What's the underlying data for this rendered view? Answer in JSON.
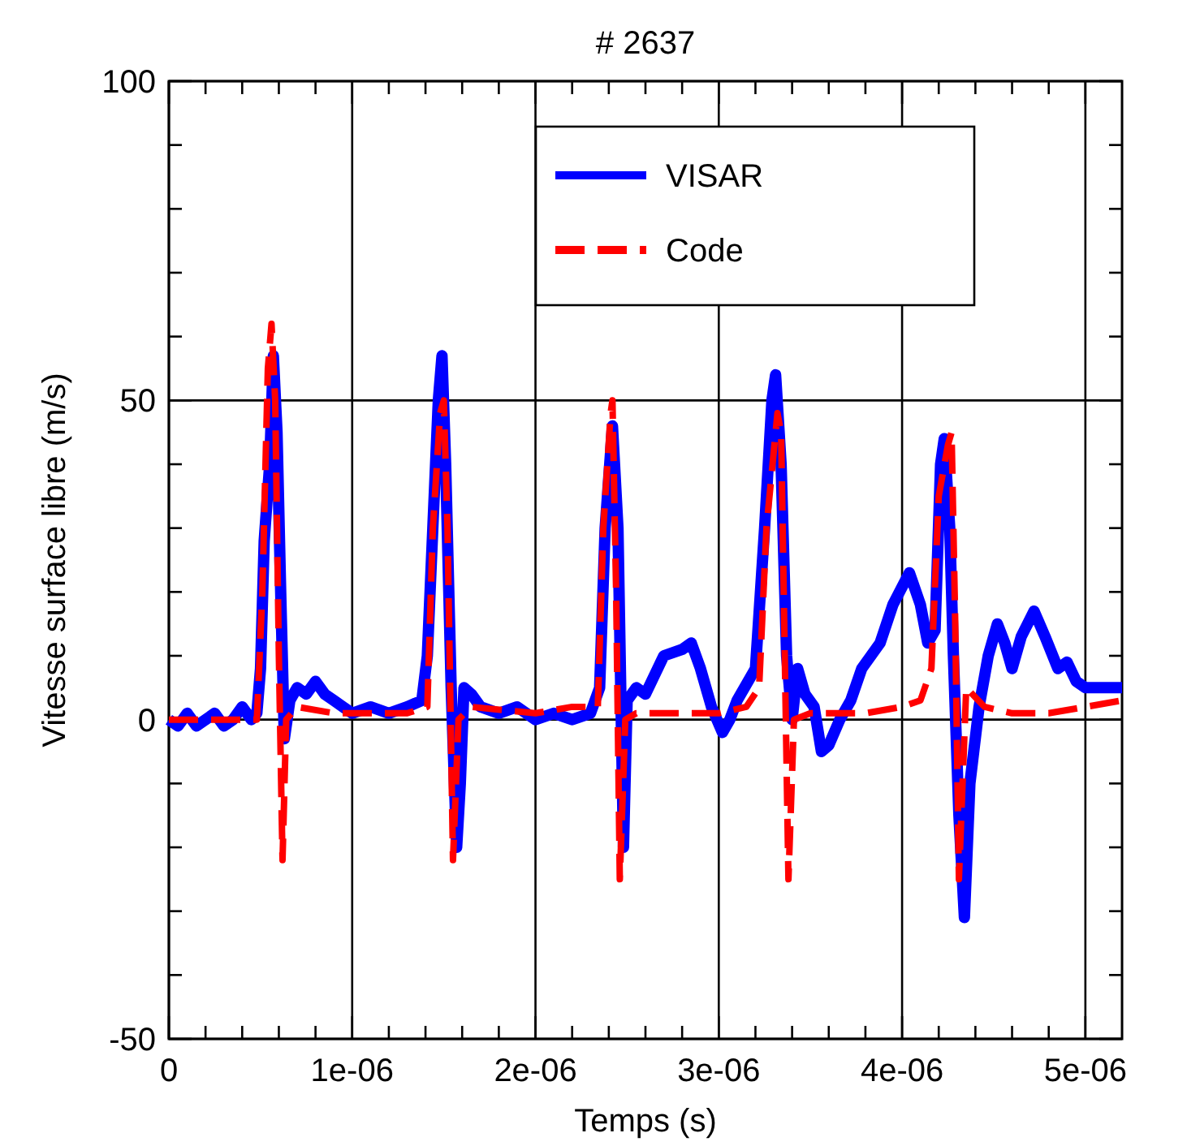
{
  "chart_data": {
    "type": "line",
    "title": "# 2637",
    "xlabel": "Temps (s)",
    "ylabel": "Vitesse surface libre (m/s)",
    "xlim": [
      0,
      5.2e-06
    ],
    "ylim": [
      -50,
      100
    ],
    "xticks": [
      0,
      {
        "value": 2e-07,
        "label": null
      },
      {
        "value": 4e-07,
        "label": null
      },
      {
        "value": 6e-07,
        "label": null
      },
      {
        "value": 8e-07,
        "label": null
      },
      {
        "value": 1e-06,
        "label": "1e-06"
      },
      {
        "value": 1.2e-06,
        "label": null
      },
      {
        "value": 1.4e-06,
        "label": null
      },
      {
        "value": 1.6e-06,
        "label": null
      },
      {
        "value": 1.8e-06,
        "label": null
      },
      {
        "value": 2e-06,
        "label": "2e-06"
      },
      {
        "value": 2.2e-06,
        "label": null
      },
      {
        "value": 2.4e-06,
        "label": null
      },
      {
        "value": 2.6e-06,
        "label": null
      },
      {
        "value": 2.8e-06,
        "label": null
      },
      {
        "value": 3e-06,
        "label": "3e-06"
      },
      {
        "value": 3.2e-06,
        "label": null
      },
      {
        "value": 3.4e-06,
        "label": null
      },
      {
        "value": 3.6e-06,
        "label": null
      },
      {
        "value": 3.8e-06,
        "label": null
      },
      {
        "value": 4e-06,
        "label": "4e-06"
      },
      {
        "value": 4.2e-06,
        "label": null
      },
      {
        "value": 4.4e-06,
        "label": null
      },
      {
        "value": 4.6e-06,
        "label": null
      },
      {
        "value": 4.8e-06,
        "label": null
      },
      {
        "value": 5e-06,
        "label": "5e-06"
      }
    ],
    "yticks": [
      -50,
      {
        "value": -40,
        "label": null
      },
      {
        "value": -30,
        "label": null
      },
      {
        "value": -20,
        "label": null
      },
      {
        "value": -10,
        "label": null
      },
      0,
      {
        "value": 10,
        "label": null
      },
      {
        "value": 20,
        "label": null
      },
      {
        "value": 30,
        "label": null
      },
      {
        "value": 40,
        "label": null
      },
      50,
      {
        "value": 60,
        "label": null
      },
      {
        "value": 70,
        "label": null
      },
      {
        "value": 80,
        "label": null
      },
      {
        "value": 90,
        "label": null
      },
      100
    ],
    "grid": true,
    "legend": "top right",
    "marker": "none",
    "series": [
      {
        "name": "VISAR",
        "color": "#0000ff",
        "line_style": "solid",
        "x": [
          0,
          5e-08,
          1e-07,
          1.5e-07,
          2e-07,
          2.5e-07,
          3e-07,
          3.5e-07,
          4e-07,
          4.5e-07,
          4.8e-07,
          5e-07,
          5.2e-07,
          5.5e-07,
          5.7e-07,
          5.9e-07,
          6.1e-07,
          6.3e-07,
          6.6e-07,
          7e-07,
          7.5e-07,
          8e-07,
          8.5e-07,
          9e-07,
          9.5e-07,
          1e-06,
          1.1e-06,
          1.2e-06,
          1.3e-06,
          1.38e-06,
          1.41e-06,
          1.44e-06,
          1.47e-06,
          1.49e-06,
          1.51e-06,
          1.54e-06,
          1.57e-06,
          1.59e-06,
          1.61e-06,
          1.65e-06,
          1.7e-06,
          1.8e-06,
          1.9e-06,
          2e-06,
          2.1e-06,
          2.2e-06,
          2.3e-06,
          2.35e-06,
          2.38e-06,
          2.42e-06,
          2.45e-06,
          2.48e-06,
          2.5e-06,
          2.55e-06,
          2.6e-06,
          2.7e-06,
          2.8e-06,
          2.85e-06,
          2.9e-06,
          2.96e-06,
          3.02e-06,
          3.06e-06,
          3.1e-06,
          3.2e-06,
          3.25e-06,
          3.29e-06,
          3.31e-06,
          3.34e-06,
          3.37e-06,
          3.4e-06,
          3.43e-06,
          3.47e-06,
          3.52e-06,
          3.56e-06,
          3.6e-06,
          3.66e-06,
          3.72e-06,
          3.78e-06,
          3.88e-06,
          3.95e-06,
          4.04e-06,
          4.1e-06,
          4.14e-06,
          4.18e-06,
          4.21e-06,
          4.23e-06,
          4.26e-06,
          4.28e-06,
          4.31e-06,
          4.34e-06,
          4.37e-06,
          4.42e-06,
          4.47e-06,
          4.52e-06,
          4.56e-06,
          4.6e-06,
          4.65e-06,
          4.72e-06,
          4.78e-06,
          4.85e-06,
          4.9e-06,
          4.95e-06,
          5e-06,
          5.2e-06
        ],
        "values": [
          0,
          -1,
          1,
          -1,
          0,
          1,
          -1,
          0,
          2,
          0,
          1,
          8,
          28,
          40,
          57,
          45,
          20,
          -3,
          3,
          5,
          4,
          6,
          4,
          3,
          2,
          1,
          2,
          1,
          2,
          3,
          10,
          30,
          50,
          57,
          40,
          5,
          -20,
          -10,
          5,
          4,
          2,
          1,
          2,
          0,
          1,
          0,
          1,
          5,
          30,
          46,
          30,
          -20,
          3,
          5,
          4,
          10,
          11,
          12,
          8,
          2,
          -2,
          0,
          3,
          8,
          30,
          50,
          54,
          40,
          10,
          0,
          8,
          4,
          2,
          -5,
          -4,
          0,
          3,
          8,
          12,
          18,
          23,
          18,
          12,
          14,
          40,
          44,
          30,
          10,
          -15,
          -31,
          -10,
          2,
          10,
          15,
          12,
          8,
          13,
          17,
          13,
          8,
          9,
          6,
          5,
          5
        ]
      },
      {
        "name": "Code",
        "color": "#ff0000",
        "line_style": "dashed",
        "x": [
          0,
          3e-07,
          4.8e-07,
          5.1e-07,
          5.4e-07,
          5.6e-07,
          5.8e-07,
          6e-07,
          6.2e-07,
          6.4e-07,
          7e-07,
          9e-07,
          1.3e-06,
          1.41e-06,
          1.44e-06,
          1.48e-06,
          1.5e-06,
          1.52e-06,
          1.55e-06,
          1.58e-06,
          1.65e-06,
          2e-06,
          2.2e-06,
          2.34e-06,
          2.37e-06,
          2.41e-06,
          2.42e-06,
          2.44e-06,
          2.46e-06,
          2.49e-06,
          2.55e-06,
          3e-06,
          3.15e-06,
          3.22e-06,
          3.26e-06,
          3.32e-06,
          3.34e-06,
          3.36e-06,
          3.38e-06,
          3.41e-06,
          3.5e-06,
          3.8e-06,
          4e-06,
          4.1e-06,
          4.16e-06,
          4.2e-06,
          4.25e-06,
          4.27e-06,
          4.29e-06,
          4.31e-06,
          4.35e-06,
          4.45e-06,
          4.6e-06,
          4.8e-06,
          5e-06,
          5.2e-06
        ],
        "values": [
          0,
          0,
          0,
          20,
          55,
          62,
          50,
          10,
          -22,
          0,
          2,
          1,
          1,
          2,
          30,
          48,
          50,
          30,
          -22,
          0,
          2,
          1,
          2,
          2,
          30,
          48,
          50,
          20,
          -25,
          0,
          1,
          1,
          2,
          5,
          30,
          48,
          45,
          10,
          -25,
          0,
          1,
          1,
          2,
          3,
          8,
          35,
          43,
          45,
          15,
          -25,
          5,
          2,
          1,
          1,
          2,
          3
        ]
      }
    ]
  }
}
